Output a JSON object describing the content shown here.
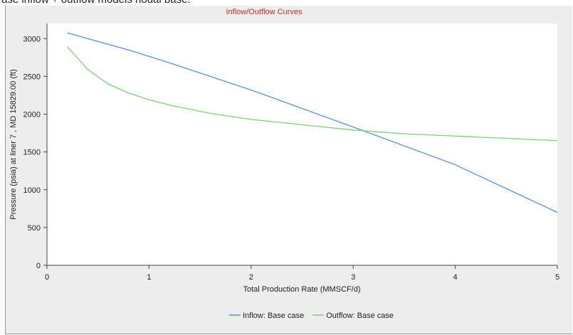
{
  "caption": "ase inflow + outflow models nodal base.",
  "chart_data": {
    "type": "line",
    "title": "Inflow/Outflow Curves",
    "xlabel": "Total Production Rate (MMSCF/d)",
    "ylabel": "Pressure (psia) at liner 7 , MD 15829.00 (ft)",
    "xlim": [
      0,
      5
    ],
    "ylim": [
      0,
      3200
    ],
    "xticks": [
      0,
      1,
      2,
      3,
      4,
      5
    ],
    "yticks": [
      0,
      500,
      1000,
      1500,
      2000,
      2500,
      3000
    ],
    "xtick_labels": [
      "0",
      "1",
      "2",
      "3",
      "4",
      "5"
    ],
    "ytick_labels": [
      "0",
      "500",
      "1000",
      "1500",
      "2000",
      "2500",
      "3000"
    ],
    "grid": false,
    "legend_position": "bottom-center",
    "series": [
      {
        "name": "Inflow: Base case",
        "color": "#5b8fd4",
        "x": [
          0.2,
          0.8,
          1.2,
          2.0,
          3.0,
          4.0,
          5.0
        ],
        "y": [
          3075,
          2850,
          2680,
          2320,
          1830,
          1330,
          700
        ]
      },
      {
        "name": "Outflow: Base case",
        "color": "#7fcf7a",
        "x": [
          0.2,
          0.4,
          0.6,
          0.8,
          1.0,
          1.2,
          1.6,
          2.0,
          2.5,
          3.0,
          3.5,
          4.0,
          4.5,
          5.0
        ],
        "y": [
          2890,
          2590,
          2400,
          2280,
          2190,
          2120,
          2010,
          1930,
          1860,
          1790,
          1740,
          1710,
          1680,
          1650
        ]
      }
    ]
  }
}
